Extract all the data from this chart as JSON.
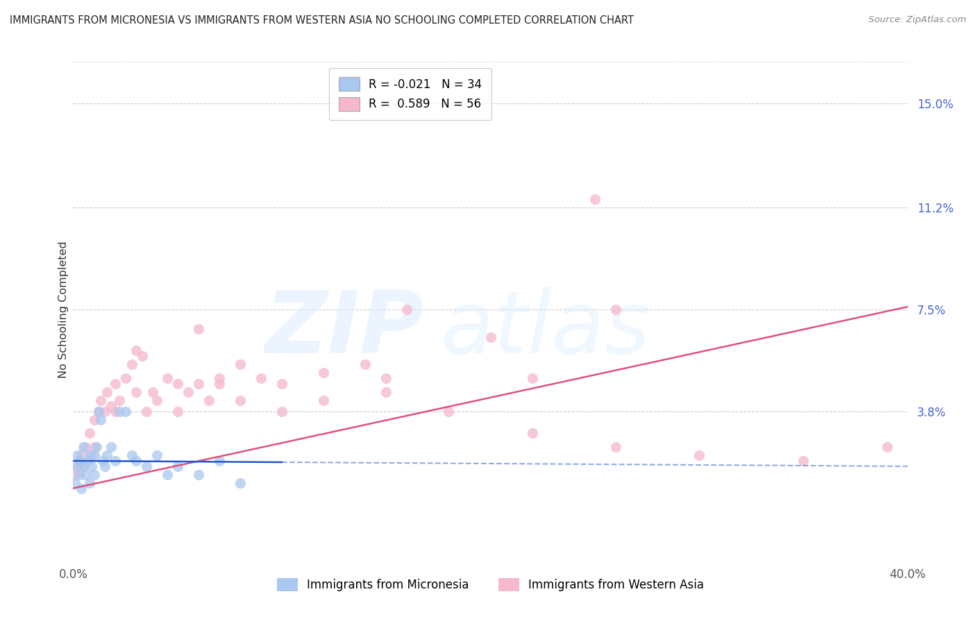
{
  "title": "IMMIGRANTS FROM MICRONESIA VS IMMIGRANTS FROM WESTERN ASIA NO SCHOOLING COMPLETED CORRELATION CHART",
  "source": "Source: ZipAtlas.com",
  "ylabel": "No Schooling Completed",
  "xlim": [
    0.0,
    0.4
  ],
  "ylim": [
    -0.015,
    0.165
  ],
  "ytick_values": [
    0.038,
    0.075,
    0.112,
    0.15
  ],
  "ytick_labels": [
    "3.8%",
    "7.5%",
    "11.2%",
    "15.0%"
  ],
  "xtick_values": [
    0.0,
    0.4
  ],
  "xtick_labels": [
    "0.0%",
    "40.0%"
  ],
  "series1_name": "Immigrants from Micronesia",
  "series2_name": "Immigrants from Western Asia",
  "series1_color": "#a8c8f0",
  "series2_color": "#f5b8cc",
  "series1_line_color": "#2255cc",
  "series2_line_color": "#e0507a",
  "R1": -0.021,
  "N1": 34,
  "R2": 0.589,
  "N2": 56,
  "mic_x": [
    0.001,
    0.002,
    0.002,
    0.003,
    0.003,
    0.004,
    0.005,
    0.005,
    0.006,
    0.007,
    0.008,
    0.008,
    0.009,
    0.01,
    0.01,
    0.011,
    0.012,
    0.013,
    0.014,
    0.015,
    0.016,
    0.018,
    0.02,
    0.022,
    0.025,
    0.028,
    0.03,
    0.035,
    0.04,
    0.045,
    0.05,
    0.06,
    0.07,
    0.08
  ],
  "mic_y": [
    0.012,
    0.018,
    0.022,
    0.015,
    0.02,
    0.01,
    0.025,
    0.018,
    0.015,
    0.02,
    0.022,
    0.012,
    0.018,
    0.015,
    0.022,
    0.025,
    0.038,
    0.035,
    0.02,
    0.018,
    0.022,
    0.025,
    0.02,
    0.038,
    0.038,
    0.022,
    0.02,
    0.018,
    0.022,
    0.015,
    0.018,
    0.015,
    0.02,
    0.012
  ],
  "wa_x": [
    0.001,
    0.002,
    0.003,
    0.004,
    0.005,
    0.006,
    0.008,
    0.009,
    0.01,
    0.012,
    0.013,
    0.015,
    0.016,
    0.018,
    0.02,
    0.022,
    0.025,
    0.028,
    0.03,
    0.033,
    0.035,
    0.038,
    0.04,
    0.045,
    0.05,
    0.055,
    0.06,
    0.065,
    0.07,
    0.08,
    0.09,
    0.1,
    0.12,
    0.14,
    0.15,
    0.16,
    0.2,
    0.22,
    0.25,
    0.26,
    0.01,
    0.02,
    0.03,
    0.05,
    0.06,
    0.07,
    0.08,
    0.1,
    0.12,
    0.15,
    0.18,
    0.22,
    0.26,
    0.3,
    0.35,
    0.39
  ],
  "wa_y": [
    0.015,
    0.018,
    0.02,
    0.022,
    0.018,
    0.025,
    0.03,
    0.022,
    0.025,
    0.038,
    0.042,
    0.038,
    0.045,
    0.04,
    0.048,
    0.042,
    0.05,
    0.055,
    0.06,
    0.058,
    0.038,
    0.045,
    0.042,
    0.05,
    0.048,
    0.045,
    0.068,
    0.042,
    0.048,
    0.055,
    0.05,
    0.048,
    0.052,
    0.055,
    0.05,
    0.075,
    0.065,
    0.05,
    0.115,
    0.075,
    0.035,
    0.038,
    0.045,
    0.038,
    0.048,
    0.05,
    0.042,
    0.038,
    0.042,
    0.045,
    0.038,
    0.03,
    0.025,
    0.022,
    0.02,
    0.025
  ]
}
